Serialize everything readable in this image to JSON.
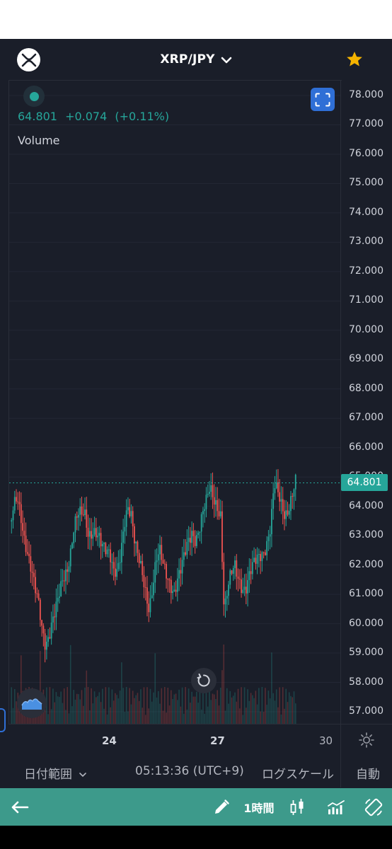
{
  "header": {
    "pair": "XRP/JPY",
    "coin_icon": "xrp-logo-icon",
    "favorite_icon": "star-icon",
    "favorite_color": "#f5b400"
  },
  "legend": {
    "price": "64.801",
    "change": "+0.074",
    "change_pct": "(+0.11%)",
    "volume_label": "Volume",
    "up_color": "#26a69a",
    "down_color": "#ef5350"
  },
  "chart_data": {
    "type": "candlestick",
    "y_ticks": [
      "78.000",
      "77.000",
      "76.000",
      "75.000",
      "74.000",
      "73.000",
      "72.000",
      "71.000",
      "70.000",
      "69.000",
      "68.000",
      "67.000",
      "66.000",
      "65.000",
      "64.000",
      "63.000",
      "62.000",
      "61.000",
      "60.000",
      "59.000",
      "58.000",
      "57.000"
    ],
    "ylim": [
      56.6,
      78.4
    ],
    "x_ticks": [
      {
        "label": "24",
        "bold": true
      },
      {
        "label": "27",
        "bold": true
      },
      {
        "label": "30",
        "bold": false
      }
    ],
    "last_price": "64.801",
    "last_price_value": 64.801,
    "close_path": [
      63.3,
      63.8,
      64.1,
      63.6,
      63.0,
      62.6,
      62.0,
      61.2,
      60.5,
      59.6,
      59.2,
      59.8,
      60.4,
      60.7,
      61.0,
      61.3,
      61.6,
      62.5,
      63.6,
      64.0,
      63.8,
      63.5,
      62.7,
      63.0,
      63.3,
      63.2,
      62.8,
      62.4,
      62.1,
      61.6,
      61.8,
      62.6,
      63.6,
      64.0,
      63.5,
      62.5,
      62.2,
      61.9,
      61.3,
      60.6,
      61.2,
      62.0,
      62.3,
      62.0,
      61.8,
      61.5,
      61.1,
      61.4,
      61.7,
      62.3,
      62.9,
      63.3,
      63.0,
      63.2,
      63.6,
      64.0,
      64.6,
      64.4,
      64.2,
      63.8,
      60.3,
      61.0,
      61.6,
      62.0,
      61.7,
      61.4,
      61.2,
      61.5,
      61.8,
      62.1,
      62.4,
      62.6,
      62.9,
      63.3,
      64.6,
      64.3,
      64.0,
      63.8,
      64.1,
      64.5,
      64.8
    ]
  },
  "buttons": {
    "fullscreen_icon": "fullscreen-icon",
    "reset_icon": "reset-rotate-icon",
    "chart_style_icon": "mountain-wave-icon",
    "settings_icon": "gear-icon"
  },
  "toolbar": {
    "date_range": "日付範囲",
    "time": "05:13:36 (UTC+9)",
    "log_scale": "ログスケール",
    "auto": "自動"
  },
  "bottom_bar": {
    "back_icon": "arrow-left-icon",
    "draw_icon": "pencil-icon",
    "interval": "1時間",
    "candle_icon": "candlestick-icon",
    "indicator_icon": "indicators-icon",
    "rotate_icon": "rotate-screen-icon"
  }
}
